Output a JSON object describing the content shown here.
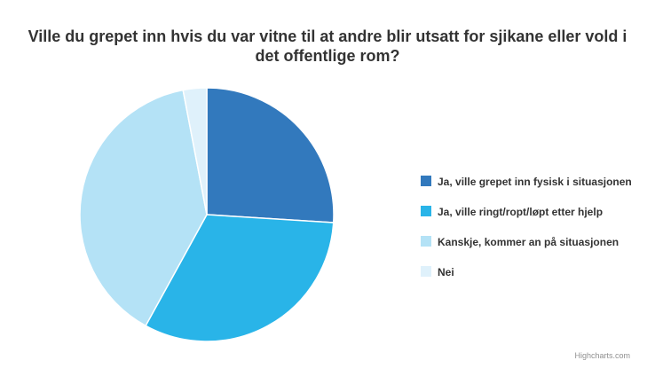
{
  "chart_data": {
    "type": "pie",
    "title": "Ville du grepet inn hvis du var vitne til at andre blir utsatt for sjikane eller vold i det offentlige rom?",
    "slices": [
      {
        "name": "Ja, ville grepet inn fysisk i situasjonen",
        "value": 26,
        "color": "#3279bd"
      },
      {
        "name": "Ja, ville ringt/ropt/løpt etter hjelp",
        "value": 32,
        "color": "#29b4e8"
      },
      {
        "name": "Kanskje, kommer an på situasjonen",
        "value": 39,
        "color": "#b4e2f6"
      },
      {
        "name": "Nei",
        "value": 3,
        "color": "#dff1fb"
      }
    ],
    "legend_placement": "right"
  },
  "credits": "Highcharts.com"
}
